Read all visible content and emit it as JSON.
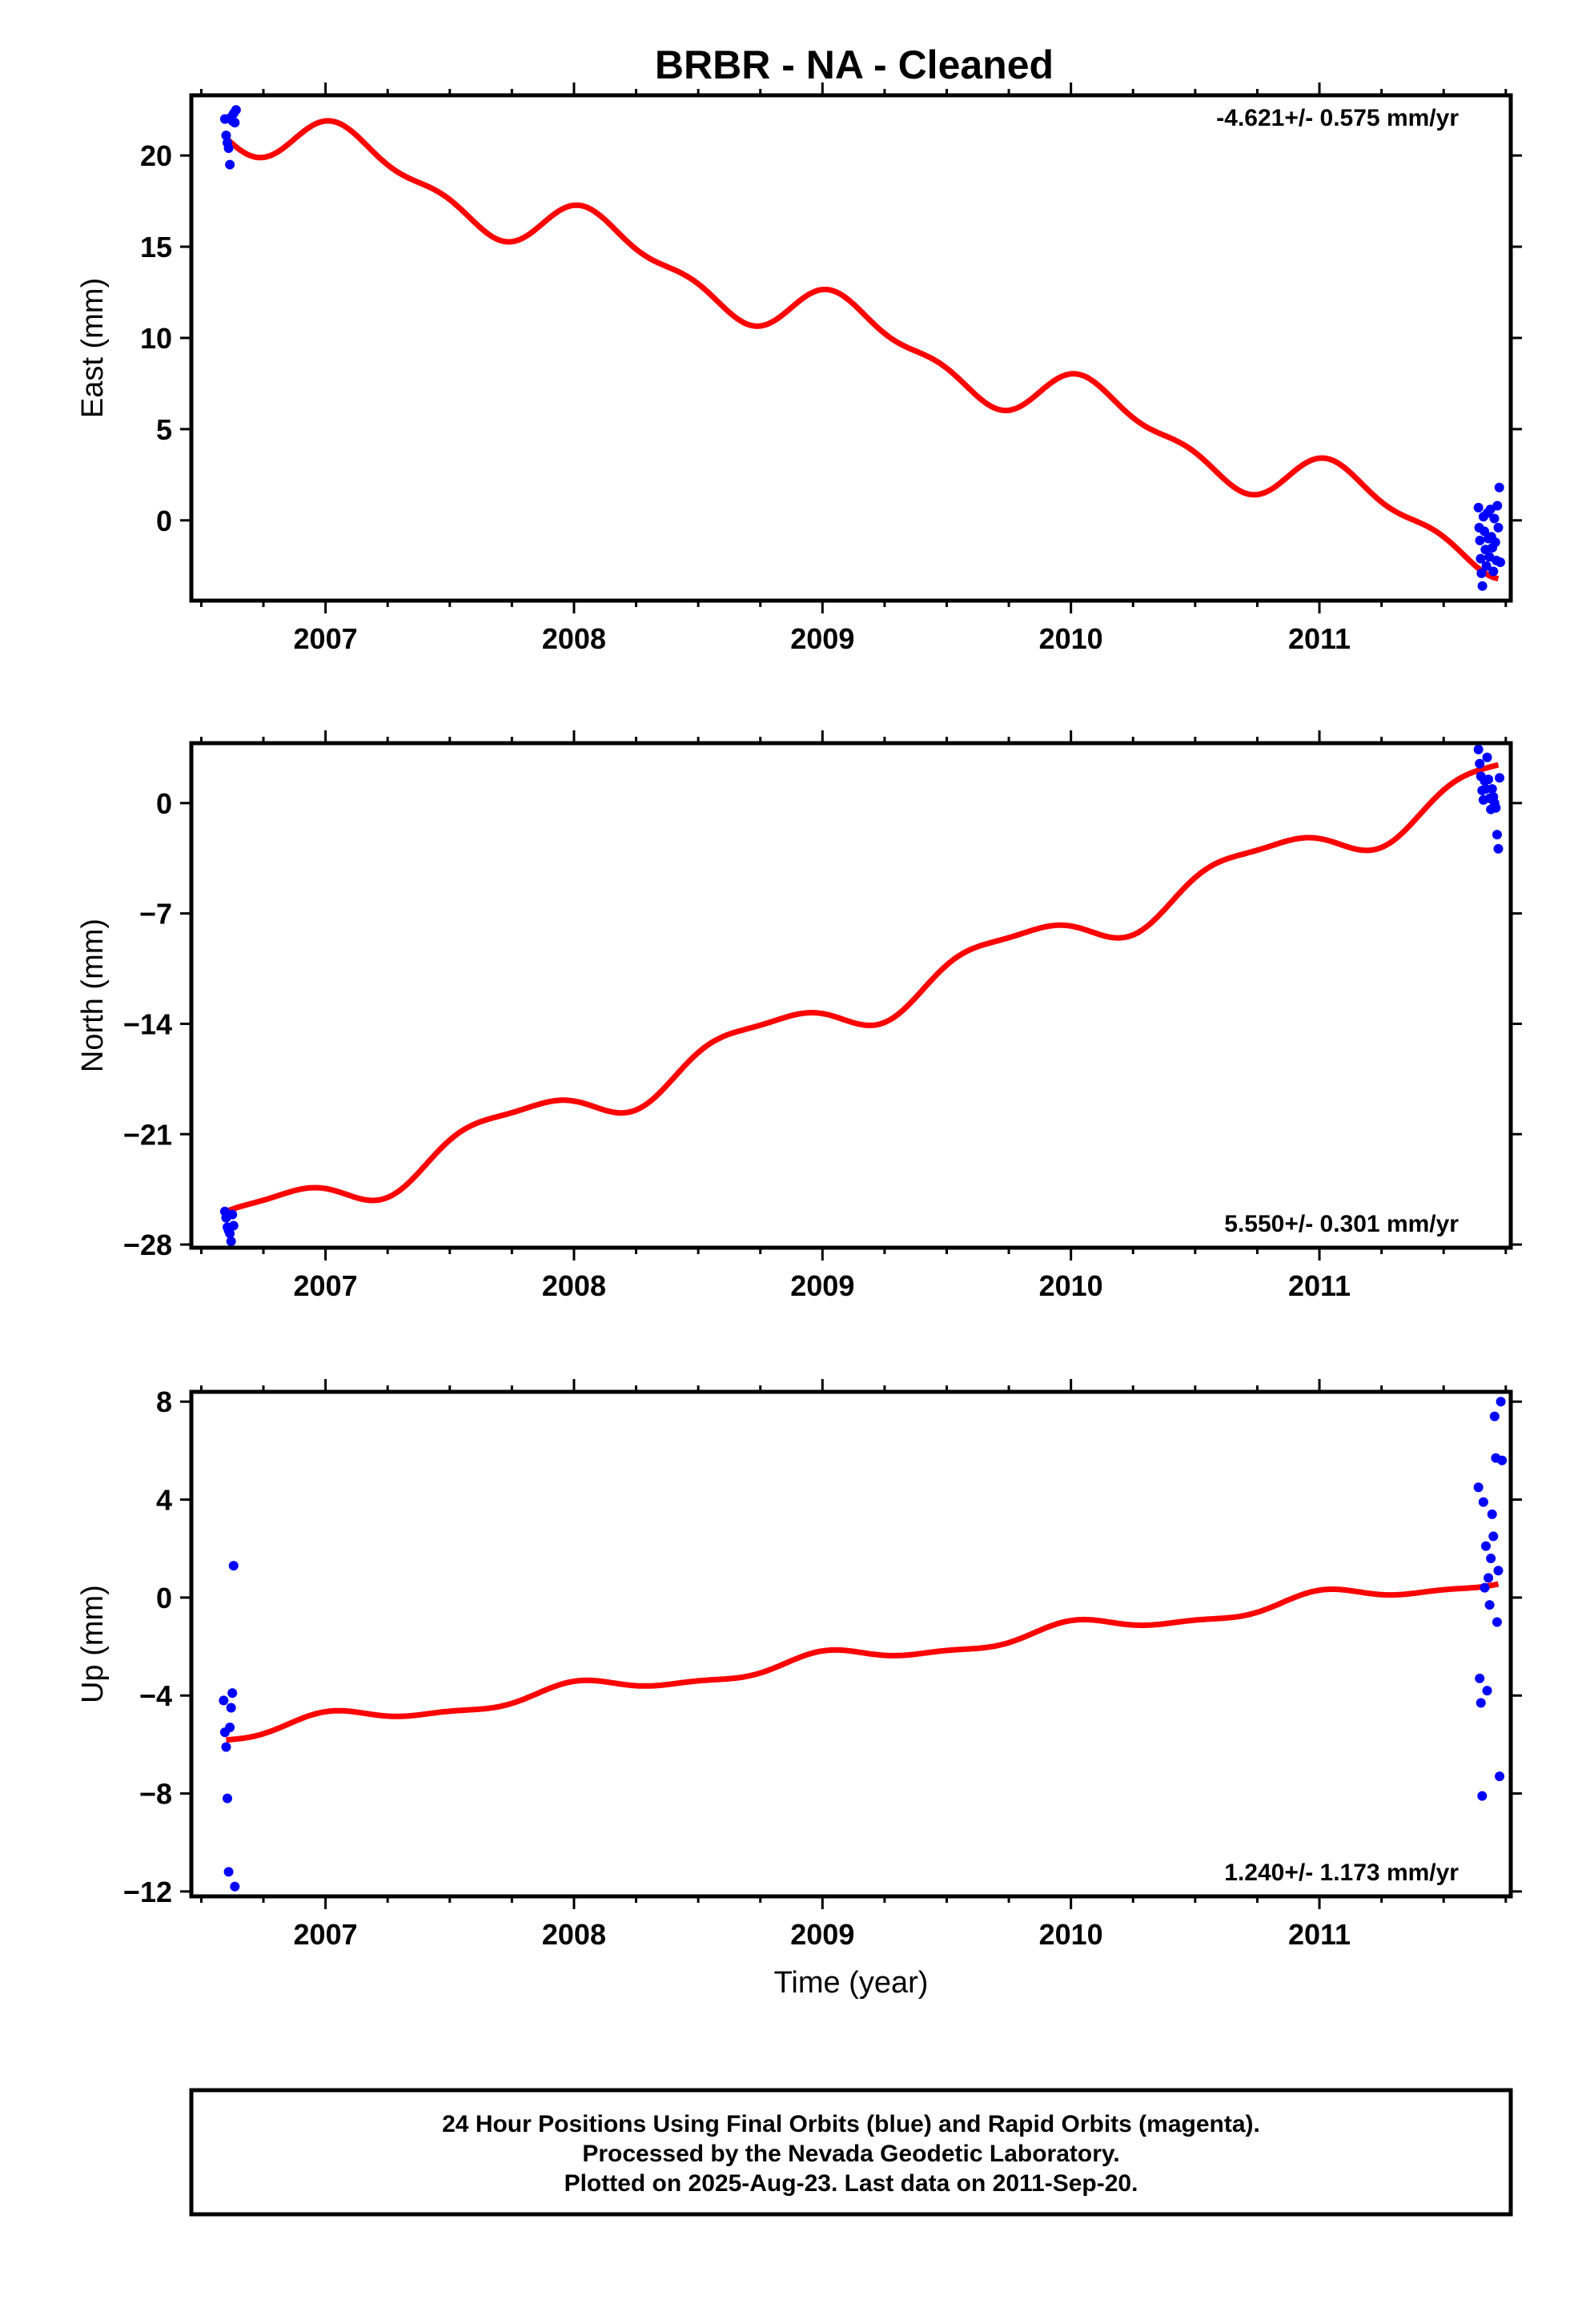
{
  "title": "BRBR  - NA - Cleaned",
  "colors": {
    "model": "#ff0000",
    "final_orbits": "#0000ff",
    "rapid_orbits": "#ff00ff",
    "frame": "#000000",
    "background": "#ffffff"
  },
  "footer": {
    "line1": "24 Hour Positions Using Final Orbits (blue) and Rapid Orbits (magenta).",
    "line2": "Processed by the Nevada Geodetic Laboratory.",
    "line3": "Plotted on 2025-Aug-23. Last data on 2011-Sep-20."
  },
  "chart_data": [
    {
      "type": "scatter",
      "title": "",
      "ylabel": "East (mm)",
      "xlabel": "",
      "rate_label": "-4.621+/- 0.575 mm/yr",
      "xlim": [
        2006.46,
        2011.77
      ],
      "ylim": [
        -4.4,
        23.3
      ],
      "xticks": [
        2007,
        2008,
        2009,
        2010,
        2011
      ],
      "xtick_labels": [
        "2007",
        "2008",
        "2009",
        "2010",
        "2011"
      ],
      "yticks": [
        0,
        5,
        10,
        15,
        20
      ],
      "ytick_labels": [
        "0",
        "5",
        "10",
        "15",
        "20"
      ],
      "grid": false,
      "series": [
        {
          "name": "Final Orbits (blue)",
          "kind": "points",
          "points": [
            [
              2006.595,
              22.0
            ],
            [
              2006.6,
              21.1
            ],
            [
              2006.605,
              20.7
            ],
            [
              2006.61,
              20.4
            ],
            [
              2006.615,
              19.5
            ],
            [
              2006.62,
              22.1
            ],
            [
              2006.625,
              21.9
            ],
            [
              2006.63,
              22.3
            ],
            [
              2006.635,
              21.8
            ],
            [
              2006.64,
              22.5
            ],
            [
              2011.64,
              0.7
            ],
            [
              2011.643,
              -0.4
            ],
            [
              2011.646,
              -1.1
            ],
            [
              2011.649,
              -2.1
            ],
            [
              2011.652,
              -2.9
            ],
            [
              2011.656,
              -3.6
            ],
            [
              2011.66,
              0.2
            ],
            [
              2011.664,
              -0.6
            ],
            [
              2011.668,
              -1.6
            ],
            [
              2011.672,
              -2.5
            ],
            [
              2011.676,
              0.4
            ],
            [
              2011.68,
              -1.0
            ],
            [
              2011.684,
              -2.0
            ],
            [
              2011.688,
              0.6
            ],
            [
              2011.692,
              -0.9
            ],
            [
              2011.696,
              -1.5
            ],
            [
              2011.7,
              -2.8
            ],
            [
              2011.704,
              0.1
            ],
            [
              2011.708,
              -1.2
            ],
            [
              2011.712,
              -2.2
            ],
            [
              2011.716,
              0.8
            ],
            [
              2011.72,
              -0.4
            ],
            [
              2011.724,
              1.8
            ],
            [
              2011.728,
              -2.3
            ]
          ]
        },
        {
          "name": "Model",
          "kind": "model",
          "x_range": [
            2006.6,
            2011.72
          ],
          "slope": -4.621,
          "intercept_at_2009": 11.05,
          "annual_sin": 0.95,
          "annual_cos": 1.0,
          "semiannual_sin": 0.0,
          "semiannual_cos": 0.6
        }
      ]
    },
    {
      "type": "scatter",
      "title": "",
      "ylabel": "North (mm)",
      "xlabel": "",
      "rate_label": "5.550+/- 0.301 mm/yr",
      "xlim": [
        2006.46,
        2011.77
      ],
      "ylim": [
        -28.2,
        3.8
      ],
      "xticks": [
        2007,
        2008,
        2009,
        2010,
        2011
      ],
      "xtick_labels": [
        "2007",
        "2008",
        "2009",
        "2010",
        "2011"
      ],
      "yticks": [
        -28,
        -21,
        -14,
        -7,
        0
      ],
      "ytick_labels": [
        "−28",
        "−21",
        "−14",
        "−7",
        "0"
      ],
      "grid": false,
      "series": [
        {
          "name": "Final Orbits (blue)",
          "kind": "points",
          "points": [
            [
              2006.595,
              -25.9
            ],
            [
              2006.6,
              -26.3
            ],
            [
              2006.605,
              -26.9
            ],
            [
              2006.61,
              -27.1
            ],
            [
              2006.615,
              -27.3
            ],
            [
              2006.62,
              -27.8
            ],
            [
              2006.625,
              -26.1
            ],
            [
              2006.63,
              -26.8
            ],
            [
              2011.64,
              3.4
            ],
            [
              2011.645,
              2.5
            ],
            [
              2011.65,
              1.7
            ],
            [
              2011.655,
              0.8
            ],
            [
              2011.66,
              0.2
            ],
            [
              2011.665,
              1.4
            ],
            [
              2011.67,
              0.9
            ],
            [
              2011.675,
              2.9
            ],
            [
              2011.68,
              1.5
            ],
            [
              2011.685,
              0.3
            ],
            [
              2011.69,
              -0.4
            ],
            [
              2011.695,
              0.9
            ],
            [
              2011.7,
              0.4
            ],
            [
              2011.705,
              0.0
            ],
            [
              2011.71,
              -0.3
            ],
            [
              2011.715,
              -2.0
            ],
            [
              2011.72,
              -2.9
            ],
            [
              2011.725,
              1.6
            ]
          ]
        },
        {
          "name": "Model",
          "kind": "model",
          "x_range": [
            2006.6,
            2011.72
          ],
          "slope": 5.55,
          "intercept_at_2009": -13.6,
          "annual_sin": -1.3,
          "annual_cos": -0.15,
          "semiannual_sin": 0.0,
          "semiannual_cos": 0.4
        }
      ]
    },
    {
      "type": "scatter",
      "title": "",
      "ylabel": "Up (mm)",
      "xlabel": "Time (year)",
      "rate_label": "1.240+/- 1.173 mm/yr",
      "xlim": [
        2006.46,
        2011.77
      ],
      "ylim": [
        -12.2,
        8.4
      ],
      "xticks": [
        2007,
        2008,
        2009,
        2010,
        2011
      ],
      "xtick_labels": [
        "2007",
        "2008",
        "2009",
        "2010",
        "2011"
      ],
      "yticks": [
        -12,
        -8,
        -4,
        0,
        4,
        8
      ],
      "ytick_labels": [
        "−12",
        "−8",
        "−4",
        "0",
        "4",
        "8"
      ],
      "grid": false,
      "series": [
        {
          "name": "Final Orbits (blue)",
          "kind": "points",
          "points": [
            [
              2006.59,
              -4.2
            ],
            [
              2006.595,
              -5.5
            ],
            [
              2006.6,
              -6.1
            ],
            [
              2006.605,
              -8.2
            ],
            [
              2006.61,
              -11.2
            ],
            [
              2006.615,
              -5.3
            ],
            [
              2006.62,
              -4.5
            ],
            [
              2006.625,
              -3.9
            ],
            [
              2006.63,
              1.3
            ],
            [
              2006.635,
              -11.8
            ],
            [
              2011.64,
              4.5
            ],
            [
              2011.645,
              -3.3
            ],
            [
              2011.65,
              -4.3
            ],
            [
              2011.655,
              -8.1
            ],
            [
              2011.66,
              3.9
            ],
            [
              2011.665,
              0.4
            ],
            [
              2011.67,
              2.1
            ],
            [
              2011.675,
              -3.8
            ],
            [
              2011.68,
              0.8
            ],
            [
              2011.685,
              -0.3
            ],
            [
              2011.69,
              1.6
            ],
            [
              2011.695,
              3.4
            ],
            [
              2011.7,
              2.5
            ],
            [
              2011.705,
              7.4
            ],
            [
              2011.71,
              5.7
            ],
            [
              2011.715,
              -1.0
            ],
            [
              2011.72,
              1.1
            ],
            [
              2011.725,
              -7.3
            ],
            [
              2011.73,
              8.0
            ],
            [
              2011.735,
              5.6
            ]
          ]
        },
        {
          "name": "Model",
          "kind": "model",
          "x_range": [
            2006.6,
            2011.72
          ],
          "slope": 1.24,
          "intercept_at_2009": -2.6,
          "annual_sin": 0.05,
          "annual_cos": 0.3,
          "semiannual_sin": 0.0,
          "semiannual_cos": 0.12
        }
      ]
    }
  ]
}
